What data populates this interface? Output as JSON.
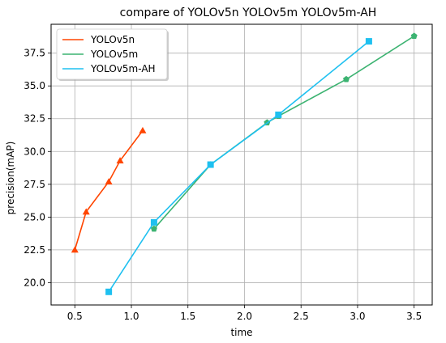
{
  "chart_data": {
    "type": "line",
    "title": "compare of YOLOv5n YOLOv5m YOLOv5m-AH",
    "xlabel": "time",
    "ylabel": "precision(mAP)",
    "xlim": [
      0.29,
      3.66
    ],
    "ylim": [
      18.3,
      39.7
    ],
    "xticks": [
      0.5,
      1.0,
      1.5,
      2.0,
      2.5,
      3.0,
      3.5
    ],
    "xtick_labels": [
      "0.5",
      "1.0",
      "1.5",
      "2.0",
      "2.5",
      "3.0",
      "3.5"
    ],
    "yticks": [
      20.0,
      22.5,
      25.0,
      27.5,
      30.0,
      32.5,
      35.0,
      37.5
    ],
    "ytick_labels": [
      "20.0",
      "22.5",
      "25.0",
      "27.5",
      "30.0",
      "32.5",
      "35.0",
      "37.5"
    ],
    "grid": true,
    "legend_position": "top-left",
    "series": [
      {
        "name": "YOLOv5n",
        "color": "#ff4500",
        "marker": "triangle",
        "x": [
          0.5,
          0.6,
          0.8,
          0.9,
          1.1
        ],
        "y": [
          22.5,
          25.4,
          27.7,
          29.3,
          31.6
        ]
      },
      {
        "name": "YOLOv5m",
        "color": "#3cb371",
        "marker": "pentagon",
        "x": [
          1.2,
          1.7,
          2.2,
          2.3,
          2.9,
          3.5
        ],
        "y": [
          24.1,
          29.0,
          32.2,
          32.7,
          35.5,
          38.8
        ]
      },
      {
        "name": "YOLOv5m-AH",
        "color": "#1ec0f0",
        "marker": "square",
        "x": [
          0.8,
          1.2,
          1.7,
          2.3,
          3.1
        ],
        "y": [
          19.3,
          24.6,
          29.0,
          32.8,
          38.4
        ]
      }
    ]
  }
}
